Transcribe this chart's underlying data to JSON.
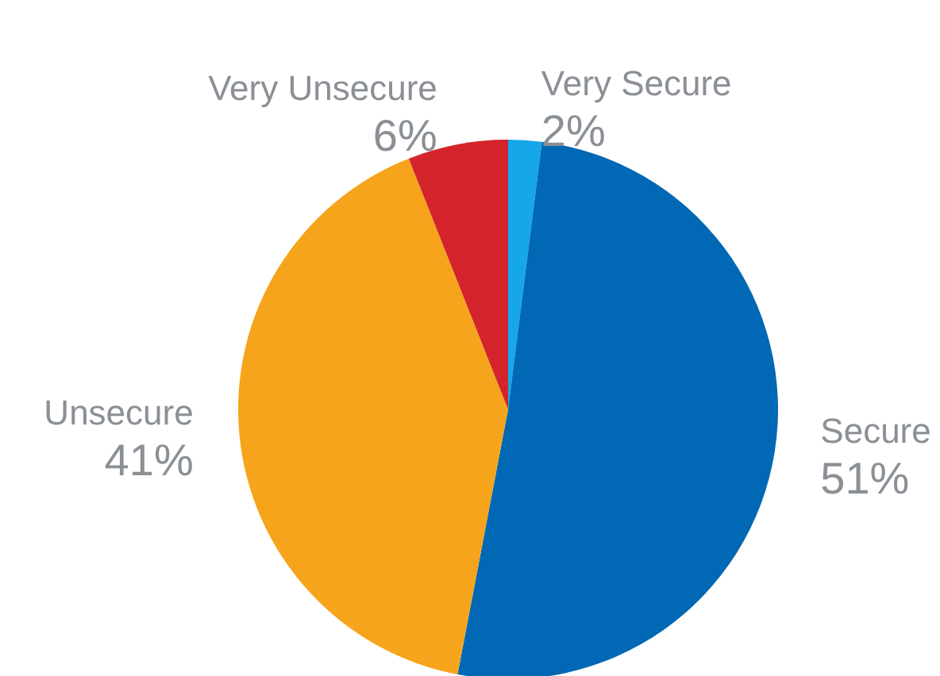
{
  "chart_data": {
    "type": "pie",
    "categories": [
      "Very Secure",
      "Secure",
      "Unsecure",
      "Very Unsecure"
    ],
    "values": [
      2,
      51,
      41,
      6
    ],
    "colors": [
      "#16a6ea",
      "#0068b4",
      "#f6a41c",
      "#d3242b"
    ],
    "value_labels": [
      "2%",
      "51%",
      "41%",
      "6%"
    ]
  }
}
